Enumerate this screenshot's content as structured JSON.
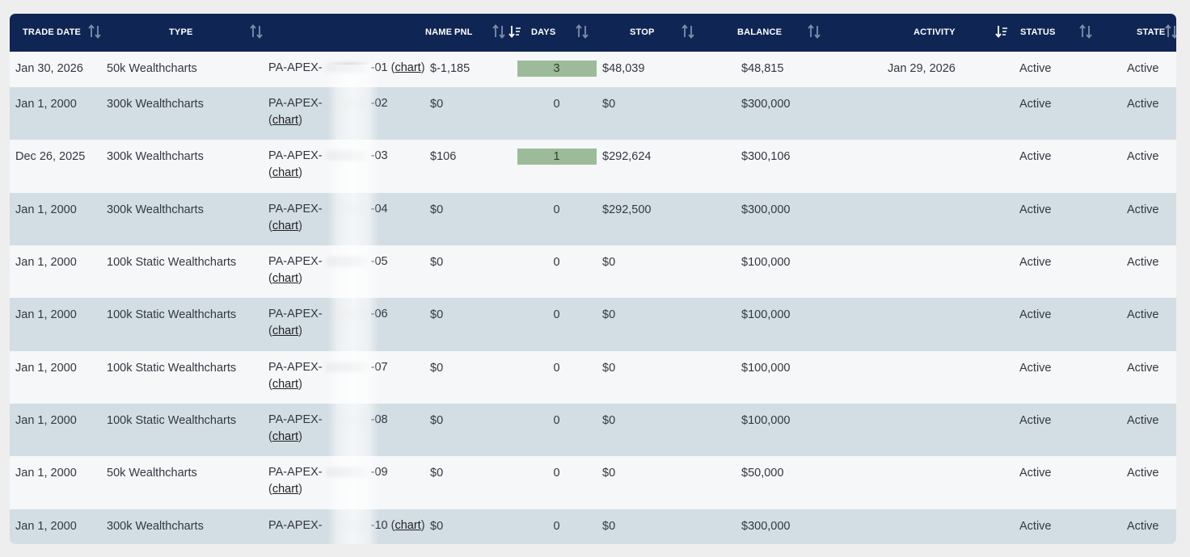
{
  "table": {
    "columns": [
      {
        "key": "trade_date",
        "label": "TRADE DATE",
        "sort": "both"
      },
      {
        "key": "type",
        "label": "TYPE",
        "sort": "both"
      },
      {
        "key": "name",
        "label": "NAME",
        "sort": "desc"
      },
      {
        "key": "pnl",
        "label": "PNL",
        "sort": "both"
      },
      {
        "key": "days",
        "label": "DAYS",
        "sort": "both"
      },
      {
        "key": "stop",
        "label": "STOP",
        "sort": "both"
      },
      {
        "key": "balance",
        "label": "BALANCE",
        "sort": "both"
      },
      {
        "key": "activity",
        "label": "ACTIVITY",
        "sort": "desc"
      },
      {
        "key": "status",
        "label": "STATUS",
        "sort": "both"
      },
      {
        "key": "state",
        "label": "STATE",
        "sort": "both"
      }
    ],
    "chart_link_label": "chart",
    "rows": [
      {
        "trade_date": "Jan 30, 2026",
        "type": "50k Wealthcharts",
        "name_prefix": "PA-APEX-",
        "name_suffix": "-01",
        "pnl": "$-1,185",
        "days": "3",
        "days_highlight": true,
        "stop": "$48,039",
        "balance": "$48,815",
        "activity": "Jan 29, 2026",
        "status": "Active",
        "state": "Active"
      },
      {
        "trade_date": "Jan 1, 2000",
        "type": "300k Wealthcharts",
        "name_prefix": "PA-APEX-",
        "name_suffix": "-02",
        "pnl": "$0",
        "days": "0",
        "days_highlight": false,
        "stop": "$0",
        "balance": "$300,000",
        "activity": "",
        "status": "Active",
        "state": "Active"
      },
      {
        "trade_date": "Dec 26, 2025",
        "type": "300k Wealthcharts",
        "name_prefix": "PA-APEX-",
        "name_suffix": "-03",
        "pnl": "$106",
        "days": "1",
        "days_highlight": true,
        "stop": "$292,624",
        "balance": "$300,106",
        "activity": "",
        "status": "Active",
        "state": "Active"
      },
      {
        "trade_date": "Jan 1, 2000",
        "type": "300k Wealthcharts",
        "name_prefix": "PA-APEX-",
        "name_suffix": "-04",
        "pnl": "$0",
        "days": "0",
        "days_highlight": false,
        "stop": "$292,500",
        "balance": "$300,000",
        "activity": "",
        "status": "Active",
        "state": "Active"
      },
      {
        "trade_date": "Jan 1, 2000",
        "type": "100k Static Wealthcharts",
        "name_prefix": "PA-APEX-",
        "name_suffix": "-05",
        "pnl": "$0",
        "days": "0",
        "days_highlight": false,
        "stop": "$0",
        "balance": "$100,000",
        "activity": "",
        "status": "Active",
        "state": "Active"
      },
      {
        "trade_date": "Jan 1, 2000",
        "type": "100k Static Wealthcharts",
        "name_prefix": "PA-APEX-",
        "name_suffix": "-06",
        "pnl": "$0",
        "days": "0",
        "days_highlight": false,
        "stop": "$0",
        "balance": "$100,000",
        "activity": "",
        "status": "Active",
        "state": "Active"
      },
      {
        "trade_date": "Jan 1, 2000",
        "type": "100k Static Wealthcharts",
        "name_prefix": "PA-APEX-",
        "name_suffix": "-07",
        "pnl": "$0",
        "days": "0",
        "days_highlight": false,
        "stop": "$0",
        "balance": "$100,000",
        "activity": "",
        "status": "Active",
        "state": "Active"
      },
      {
        "trade_date": "Jan 1, 2000",
        "type": "100k Static Wealthcharts",
        "name_prefix": "PA-APEX-",
        "name_suffix": "-08",
        "pnl": "$0",
        "days": "0",
        "days_highlight": false,
        "stop": "$0",
        "balance": "$100,000",
        "activity": "",
        "status": "Active",
        "state": "Active"
      },
      {
        "trade_date": "Jan 1, 2000",
        "type": "50k Wealthcharts",
        "name_prefix": "PA-APEX-",
        "name_suffix": "-09",
        "pnl": "$0",
        "days": "0",
        "days_highlight": false,
        "stop": "$0",
        "balance": "$50,000",
        "activity": "",
        "status": "Active",
        "state": "Active"
      },
      {
        "trade_date": "Jan 1, 2000",
        "type": "300k Wealthcharts",
        "name_prefix": "PA-APEX-",
        "name_suffix": "-10",
        "pnl": "$0",
        "days": "0",
        "days_highlight": false,
        "stop": "$0",
        "balance": "$300,000",
        "activity": "",
        "status": "Active",
        "state": "Active"
      }
    ]
  },
  "colors": {
    "header_bg": "#0f2654",
    "row_odd": "#f5f7f9",
    "row_even": "#d3dde4",
    "days_highlight": "#9cbb98",
    "sort_icon": "#7f8ea8"
  },
  "icons": {
    "sort_both": "sort-up-down-icon",
    "sort_desc": "sort-descending-icon"
  }
}
